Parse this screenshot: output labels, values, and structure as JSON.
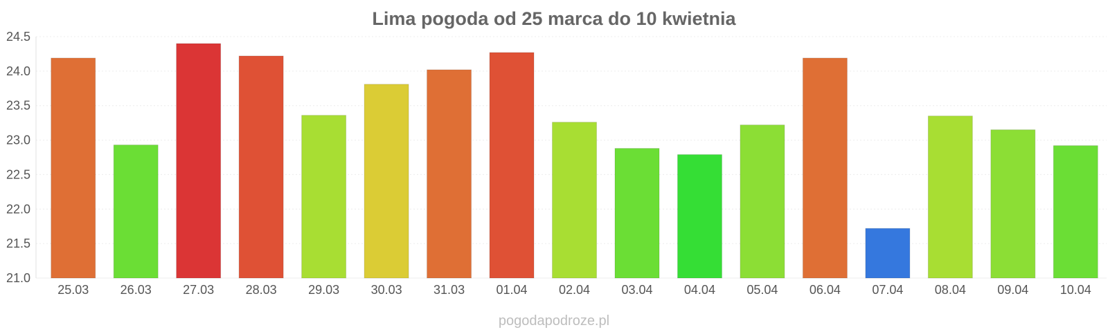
{
  "chart_data": {
    "type": "bar",
    "title": "Lima pogoda od 25 marca do 10 kwietnia",
    "categories": [
      "25.03",
      "26.03",
      "27.03",
      "28.03",
      "29.03",
      "30.03",
      "31.03",
      "01.04",
      "02.04",
      "03.04",
      "04.04",
      "05.04",
      "06.04",
      "07.04",
      "08.04",
      "09.04",
      "10.04"
    ],
    "values": [
      24.19,
      22.93,
      24.4,
      24.22,
      23.36,
      23.81,
      24.02,
      24.27,
      23.26,
      22.88,
      22.79,
      23.22,
      24.19,
      21.72,
      23.35,
      23.15,
      22.92
    ],
    "colors": [
      "#df6f35",
      "#6bde35",
      "#db3535",
      "#df5135",
      "#a8de33",
      "#dbcc35",
      "#df6f35",
      "#df5135",
      "#a8de33",
      "#6bde35",
      "#35de35",
      "#8cde35",
      "#df6f35",
      "#3578de",
      "#a8de33",
      "#8cde35",
      "#6bde35"
    ],
    "yticks": [
      "21.0",
      "21.5",
      "22.0",
      "22.5",
      "23.0",
      "23.5",
      "24.0",
      "24.5"
    ],
    "ylim": [
      21.0,
      24.5
    ],
    "grid": true,
    "xlabel": "",
    "ylabel": ""
  },
  "footer": {
    "source": "pogodapodroze.pl"
  }
}
